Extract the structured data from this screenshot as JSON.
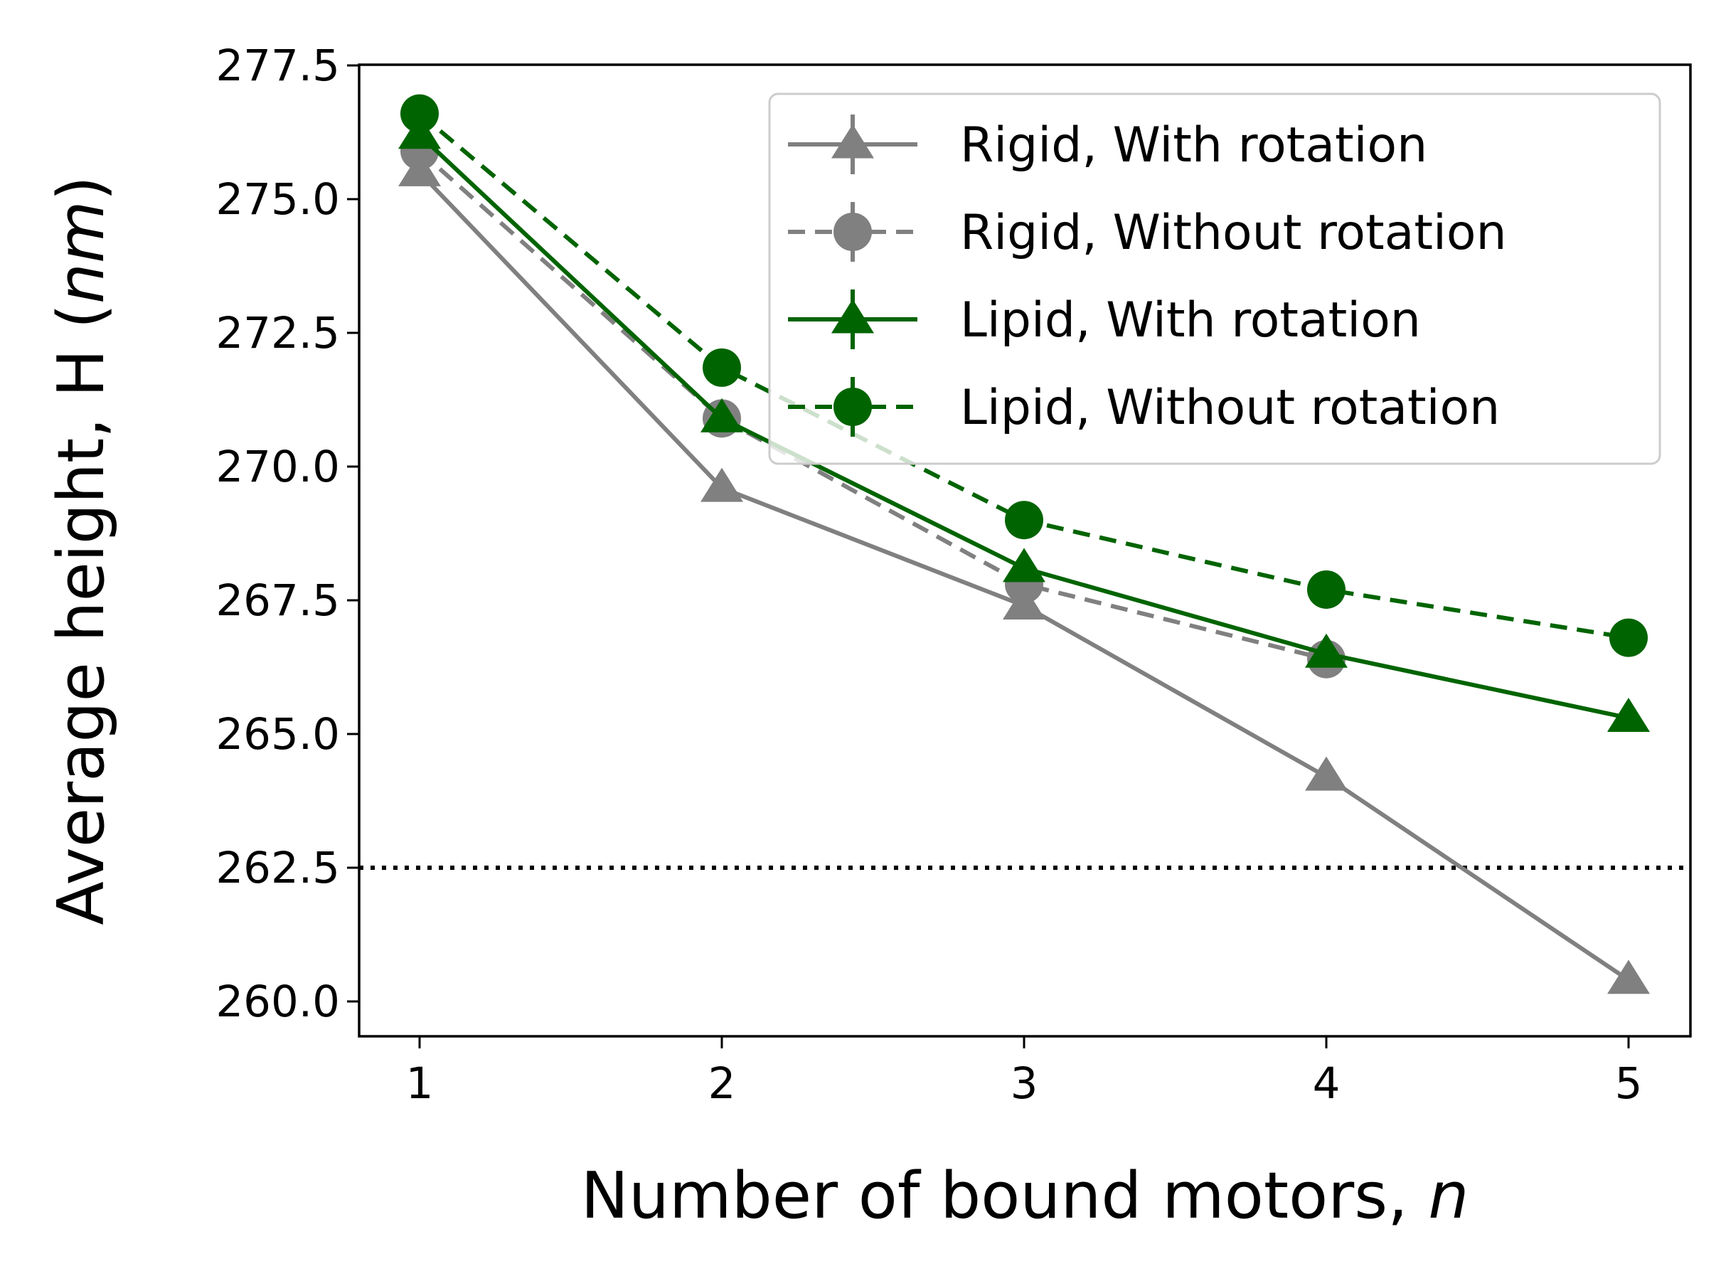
{
  "chart_data": {
    "type": "line",
    "x": [
      1,
      2,
      3,
      4,
      5
    ],
    "xticks": [
      "1",
      "2",
      "3",
      "4",
      "5"
    ],
    "yticks": [
      "260.0",
      "262.5",
      "265.0",
      "267.5",
      "270.0",
      "272.5",
      "275.0",
      "277.5"
    ],
    "xlim": [
      0.8,
      5.2
    ],
    "ylim": [
      259.35,
      277.5
    ],
    "xlabel": "Number of bound motors, ",
    "xlabel_var": "n",
    "ylabel": "Average height, H (",
    "ylabel_unit": "nm",
    "ylabel_close": ")",
    "reference_line": {
      "y": 262.5,
      "style": "dotted",
      "color": "#000000"
    },
    "legend_position": "top-right",
    "series": [
      {
        "name": "Rigid, With rotation",
        "values": [
          275.5,
          269.6,
          267.4,
          264.2,
          260.4
        ],
        "color": "#808080",
        "marker": "triangle",
        "dash": "solid"
      },
      {
        "name": "Rigid, Without rotation",
        "values": [
          275.9,
          270.9,
          267.8,
          266.4,
          null
        ],
        "color": "#808080",
        "marker": "circle",
        "dash": "dashed"
      },
      {
        "name": "Lipid, With rotation",
        "values": [
          276.2,
          270.9,
          268.1,
          266.5,
          265.3
        ],
        "color": "#006400",
        "marker": "triangle",
        "dash": "solid"
      },
      {
        "name": "Lipid, Without rotation",
        "values": [
          276.6,
          271.85,
          269.0,
          267.7,
          266.8
        ],
        "color": "#006400",
        "marker": "circle",
        "dash": "dashed"
      }
    ]
  }
}
